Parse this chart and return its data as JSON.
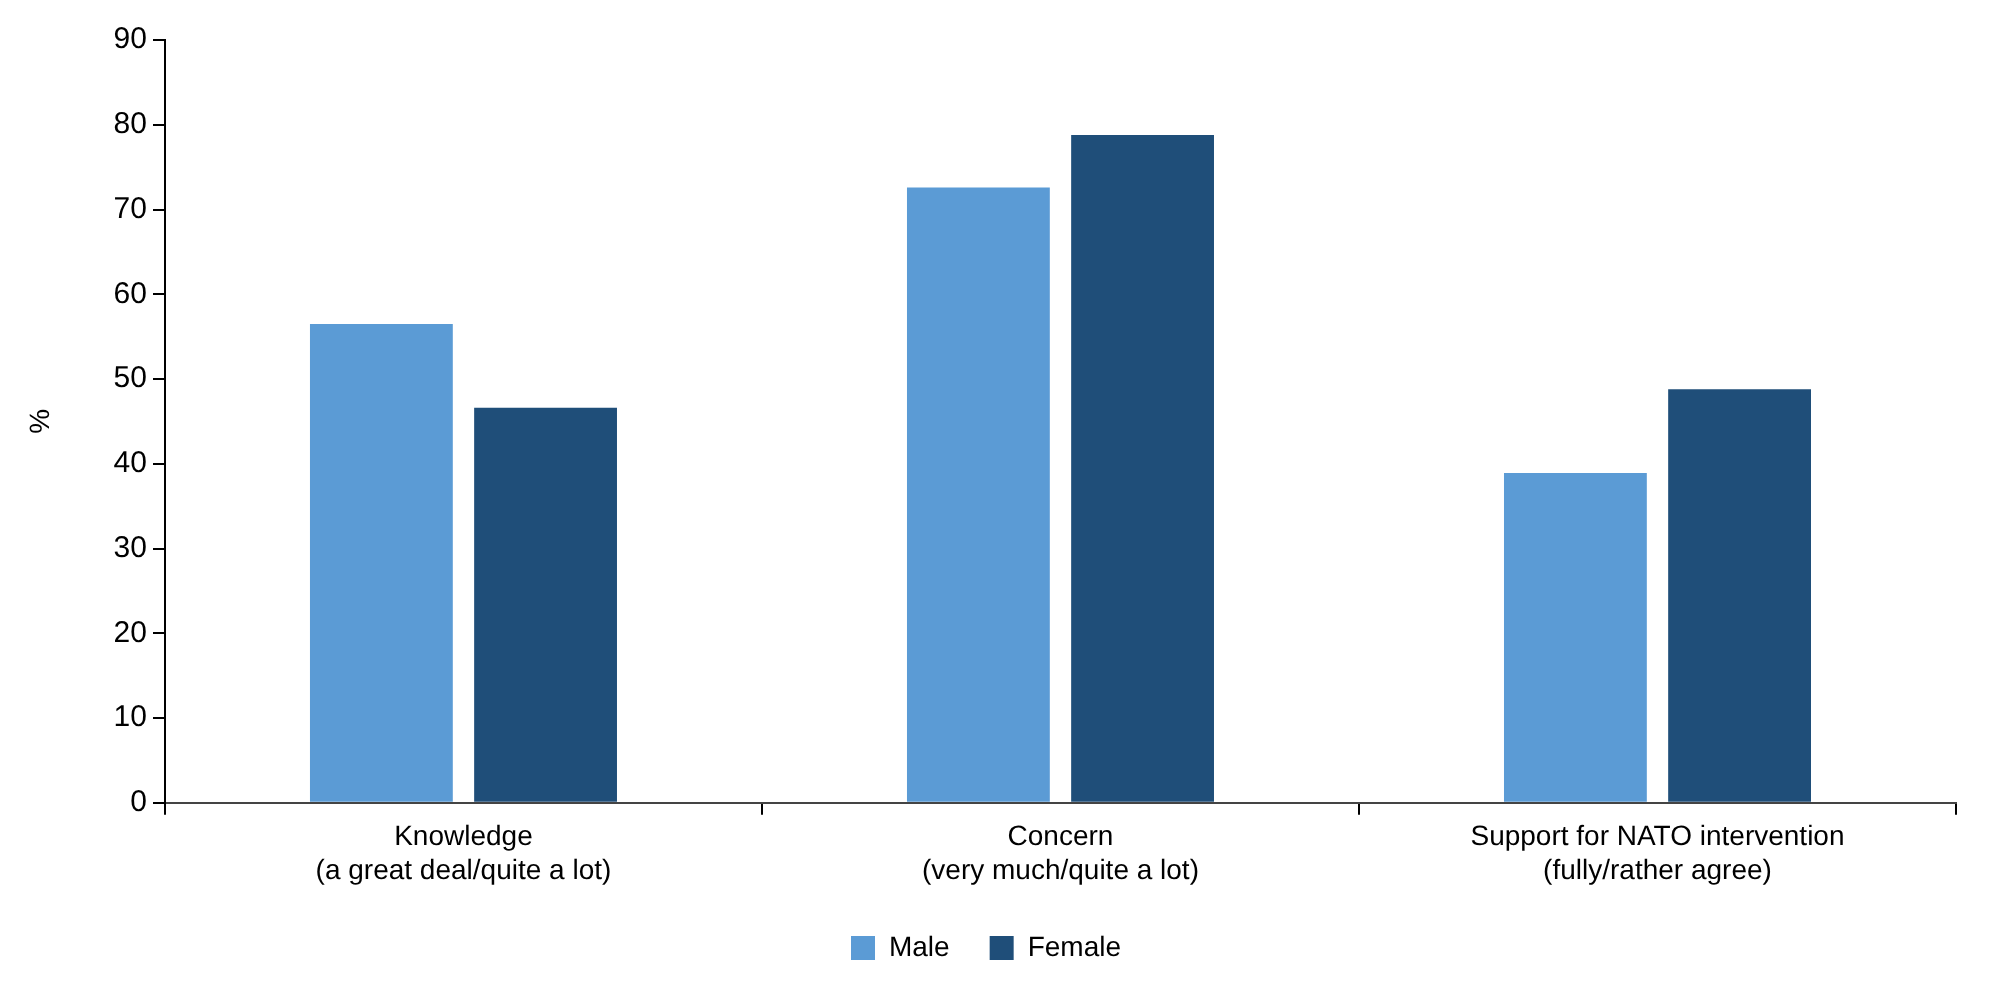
{
  "chart_data": {
    "type": "bar",
    "ylabel": "%",
    "categories": [
      "Knowledge\n(a great deal/quite a lot)",
      "Concern\n(very much/quite a lot)",
      "Support for NATO intervention\n(fully/rather agree)"
    ],
    "series": [
      {
        "name": "Male",
        "color": "#5b9bd5",
        "values": [
          56.5,
          72.6,
          38.9
        ]
      },
      {
        "name": "Female",
        "color": "#1f4e79",
        "values": [
          46.6,
          78.8,
          48.8
        ]
      }
    ],
    "ylim": [
      0,
      90
    ],
    "yticks": [
      0,
      10,
      20,
      30,
      40,
      50,
      60,
      70,
      80,
      90
    ],
    "grid": false,
    "legend": "bottom"
  }
}
